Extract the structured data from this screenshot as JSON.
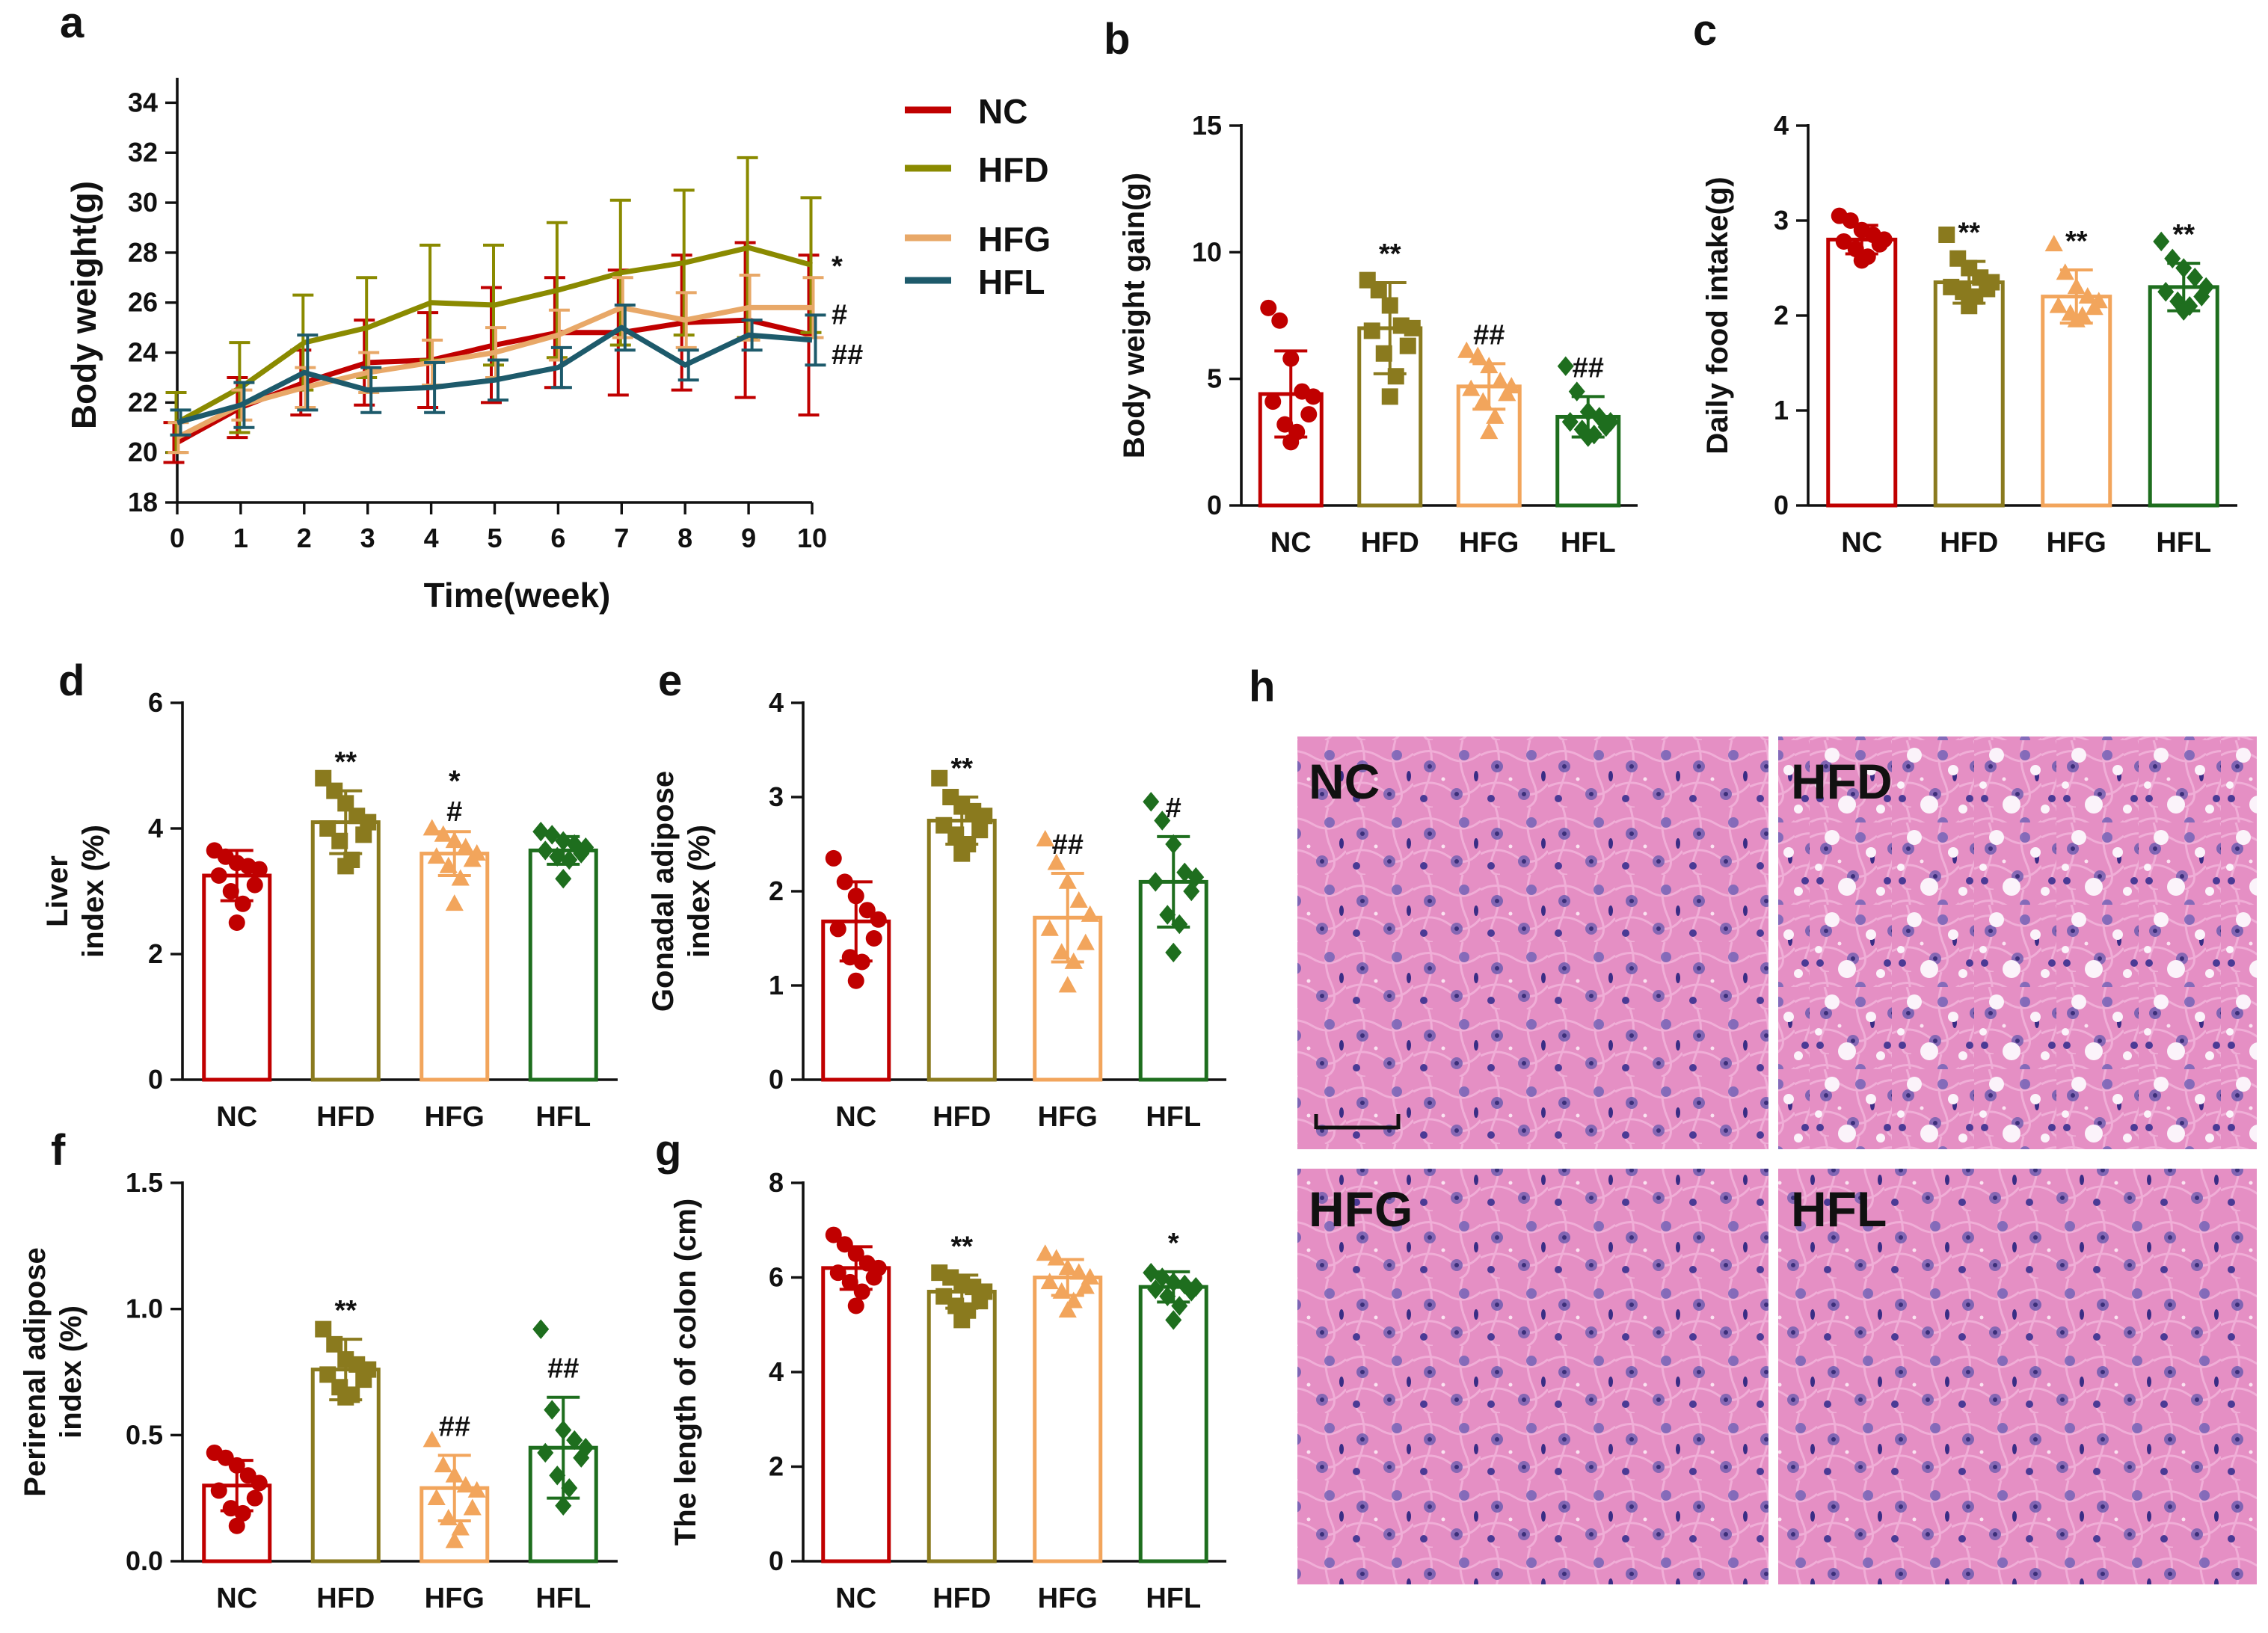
{
  "figure": {
    "panel_letters": [
      "a",
      "b",
      "c",
      "d",
      "e",
      "f",
      "g",
      "h"
    ],
    "group_colors": {
      "NC": "#c00000",
      "HFD": "#8a7a1e",
      "HFG": "#f2a55c",
      "HFL": "#1e6e1e"
    },
    "line_colors": {
      "NC": "#c00000",
      "HFD": "#8a8a00",
      "HFG": "#e8a868",
      "HFL": "#1d5a6b"
    }
  },
  "chart_data": [
    {
      "panel": "a",
      "type": "line",
      "xlabel": "Time(week)",
      "ylabel": "Body weight(g)",
      "x": [
        0,
        1,
        2,
        3,
        4,
        5,
        6,
        7,
        8,
        9,
        10
      ],
      "xticks": [
        "0",
        "1",
        "2",
        "3",
        "4",
        "5",
        "6",
        "7",
        "8",
        "9",
        "10"
      ],
      "ylim": [
        18,
        35
      ],
      "yticks": [
        18,
        20,
        22,
        24,
        26,
        28,
        30,
        32,
        34
      ],
      "legend": [
        "NC",
        "HFD",
        "HFG",
        "HFL"
      ],
      "series": [
        {
          "name": "NC",
          "values": [
            20.4,
            21.8,
            22.8,
            23.6,
            23.7,
            24.3,
            24.8,
            24.8,
            25.2,
            25.3,
            24.7
          ],
          "sd": [
            0.8,
            1.2,
            1.3,
            1.7,
            1.9,
            2.3,
            2.2,
            2.5,
            2.7,
            3.1,
            3.2
          ]
        },
        {
          "name": "HFD",
          "values": [
            21.2,
            22.6,
            24.4,
            25.0,
            26.0,
            25.9,
            26.5,
            27.2,
            27.6,
            28.2,
            27.5
          ],
          "sd": [
            1.2,
            1.8,
            1.9,
            2.0,
            2.3,
            2.4,
            2.7,
            2.9,
            2.9,
            3.6,
            2.7
          ]
        },
        {
          "name": "HFG",
          "values": [
            20.6,
            21.9,
            22.6,
            23.2,
            23.6,
            24.0,
            24.7,
            25.8,
            25.3,
            25.8,
            25.8
          ],
          "sd": [
            0.6,
            0.6,
            0.8,
            0.8,
            0.9,
            1.0,
            1.0,
            1.2,
            1.1,
            1.3,
            1.2
          ]
        },
        {
          "name": "HFL",
          "values": [
            21.2,
            21.9,
            23.2,
            22.5,
            22.6,
            22.9,
            23.4,
            25.0,
            23.5,
            24.7,
            24.5
          ],
          "sd": [
            0.5,
            0.9,
            1.5,
            0.9,
            1.0,
            0.8,
            0.8,
            0.9,
            0.6,
            0.6,
            1.0
          ]
        }
      ],
      "annotations": [
        {
          "text": "*",
          "series": "HFD"
        },
        {
          "text": "#",
          "series": "HFG"
        },
        {
          "text": "##",
          "series": "HFL"
        }
      ]
    },
    {
      "panel": "b",
      "type": "bar",
      "ylabel": "Body weight gain(g)",
      "categories": [
        "NC",
        "HFD",
        "HFG",
        "HFL"
      ],
      "values": [
        4.4,
        7.0,
        4.7,
        3.5
      ],
      "sd": [
        1.7,
        1.8,
        0.9,
        0.8
      ],
      "ylim": [
        0,
        15
      ],
      "yticks": [
        0,
        5,
        10,
        15
      ],
      "annotations": [
        "",
        "**",
        "##",
        "##"
      ],
      "points": [
        [
          7.8,
          7.3,
          5.8,
          4.5,
          4.3,
          4.1,
          3.6,
          3.2,
          2.9,
          2.5
        ],
        [
          8.9,
          8.5,
          7.9,
          7.1,
          7.0,
          6.9,
          6.3,
          6.0,
          5.1,
          4.3
        ],
        [
          6.1,
          5.9,
          5.5,
          4.9,
          4.7,
          4.6,
          4.4,
          4.1,
          3.5,
          2.9
        ],
        [
          5.5,
          4.5,
          3.7,
          3.5,
          3.3,
          3.3,
          3.1,
          3.0,
          2.8,
          2.7
        ]
      ]
    },
    {
      "panel": "c",
      "type": "bar",
      "ylabel": "Daily food intake(g)",
      "categories": [
        "NC",
        "HFD",
        "HFG",
        "HFL"
      ],
      "values": [
        2.8,
        2.35,
        2.2,
        2.3
      ],
      "sd": [
        0.15,
        0.22,
        0.28,
        0.25
      ],
      "ylim": [
        0,
        4
      ],
      "yticks": [
        0,
        1,
        2,
        3,
        4
      ],
      "annotations": [
        "",
        "**",
        "**",
        "**"
      ],
      "points": [
        [
          3.05,
          3.0,
          2.9,
          2.85,
          2.8,
          2.78,
          2.75,
          2.7,
          2.62,
          2.58
        ],
        [
          2.85,
          2.6,
          2.5,
          2.4,
          2.35,
          2.3,
          2.28,
          2.25,
          2.2,
          2.1
        ],
        [
          2.75,
          2.45,
          2.3,
          2.2,
          2.15,
          2.1,
          2.08,
          2.02,
          2.0,
          1.95
        ],
        [
          2.78,
          2.6,
          2.5,
          2.4,
          2.3,
          2.25,
          2.2,
          2.15,
          2.1,
          2.05
        ]
      ]
    },
    {
      "panel": "d",
      "type": "bar",
      "ylabel": "Liver index (%)",
      "categories": [
        "NC",
        "HFD",
        "HFG",
        "HFL"
      ],
      "values": [
        3.25,
        4.1,
        3.6,
        3.65
      ],
      "sd": [
        0.4,
        0.5,
        0.35,
        0.22
      ],
      "ylim": [
        0,
        6
      ],
      "yticks": [
        0,
        2,
        4,
        6
      ],
      "annotations": [
        "",
        "**",
        "*#",
        ""
      ],
      "points": [
        [
          3.65,
          3.55,
          3.45,
          3.4,
          3.35,
          3.25,
          3.1,
          3.0,
          2.8,
          2.5
        ],
        [
          4.8,
          4.6,
          4.4,
          4.2,
          4.1,
          4.0,
          3.9,
          3.8,
          3.5,
          3.4
        ],
        [
          4.0,
          3.9,
          3.8,
          3.7,
          3.6,
          3.55,
          3.5,
          3.4,
          3.2,
          2.8
        ],
        [
          3.95,
          3.9,
          3.8,
          3.75,
          3.7,
          3.65,
          3.6,
          3.55,
          3.5,
          3.2
        ]
      ]
    },
    {
      "panel": "e",
      "type": "bar",
      "ylabel": "Gonadal adipose index (%)",
      "categories": [
        "NC",
        "HFD",
        "HFG",
        "HFL"
      ],
      "values": [
        1.68,
        2.75,
        1.72,
        2.1
      ],
      "sd": [
        0.42,
        0.25,
        0.47,
        0.48
      ],
      "ylim": [
        0,
        4
      ],
      "yticks": [
        0,
        1,
        2,
        3,
        4
      ],
      "annotations": [
        "",
        "**",
        "##",
        "#"
      ],
      "points": [
        [
          2.35,
          2.1,
          1.95,
          1.8,
          1.7,
          1.6,
          1.5,
          1.3,
          1.25,
          1.05
        ],
        [
          3.2,
          3.0,
          2.9,
          2.85,
          2.8,
          2.7,
          2.65,
          2.6,
          2.5,
          2.4
        ],
        [
          2.55,
          2.3,
          2.1,
          1.9,
          1.75,
          1.6,
          1.45,
          1.35,
          1.25,
          1.0
        ],
        [
          2.95,
          2.75,
          2.5,
          2.2,
          2.15,
          2.1,
          2.0,
          1.75,
          1.65,
          1.35
        ]
      ]
    },
    {
      "panel": "f",
      "type": "bar",
      "ylabel": "Perirenal adipose index (%)",
      "categories": [
        "NC",
        "HFD",
        "HFG",
        "HFL"
      ],
      "values": [
        0.3,
        0.76,
        0.29,
        0.45
      ],
      "sd": [
        0.1,
        0.12,
        0.13,
        0.2
      ],
      "ylim": [
        0,
        1.5
      ],
      "yticks": [
        0,
        0.5,
        1.0,
        1.5
      ],
      "ytick_labels": [
        "0.0",
        "0.5",
        "1.0",
        "1.5"
      ],
      "annotations": [
        "",
        "**",
        "##",
        "##"
      ],
      "points": [
        [
          0.43,
          0.41,
          0.38,
          0.34,
          0.31,
          0.28,
          0.25,
          0.21,
          0.19,
          0.14
        ],
        [
          0.92,
          0.86,
          0.8,
          0.78,
          0.76,
          0.74,
          0.72,
          0.69,
          0.66,
          0.65
        ],
        [
          0.48,
          0.38,
          0.34,
          0.3,
          0.28,
          0.25,
          0.21,
          0.17,
          0.13,
          0.08
        ],
        [
          0.92,
          0.6,
          0.52,
          0.48,
          0.45,
          0.43,
          0.41,
          0.34,
          0.29,
          0.22
        ]
      ]
    },
    {
      "panel": "g",
      "type": "bar",
      "ylabel": "The length of colon (cm)",
      "categories": [
        "NC",
        "HFD",
        "HFG",
        "HFL"
      ],
      "values": [
        6.2,
        5.7,
        6.0,
        5.8
      ],
      "sd": [
        0.45,
        0.35,
        0.38,
        0.32
      ],
      "ylim": [
        0,
        8
      ],
      "yticks": [
        0,
        2,
        4,
        6,
        8
      ],
      "annotations": [
        "",
        "**",
        "",
        "*"
      ],
      "points": [
        [
          6.9,
          6.7,
          6.5,
          6.3,
          6.2,
          6.1,
          6.0,
          5.9,
          5.7,
          5.4
        ],
        [
          6.1,
          6.0,
          5.9,
          5.8,
          5.7,
          5.6,
          5.5,
          5.4,
          5.3,
          5.1
        ],
        [
          6.5,
          6.4,
          6.2,
          6.1,
          6.0,
          5.9,
          5.8,
          5.7,
          5.5,
          5.3
        ],
        [
          6.1,
          6.0,
          5.9,
          5.85,
          5.8,
          5.75,
          5.7,
          5.6,
          5.4,
          5.1
        ]
      ]
    }
  ],
  "histology": {
    "panel": "h",
    "image_labels": [
      "NC",
      "HFD",
      "HFG",
      "HFL"
    ]
  }
}
